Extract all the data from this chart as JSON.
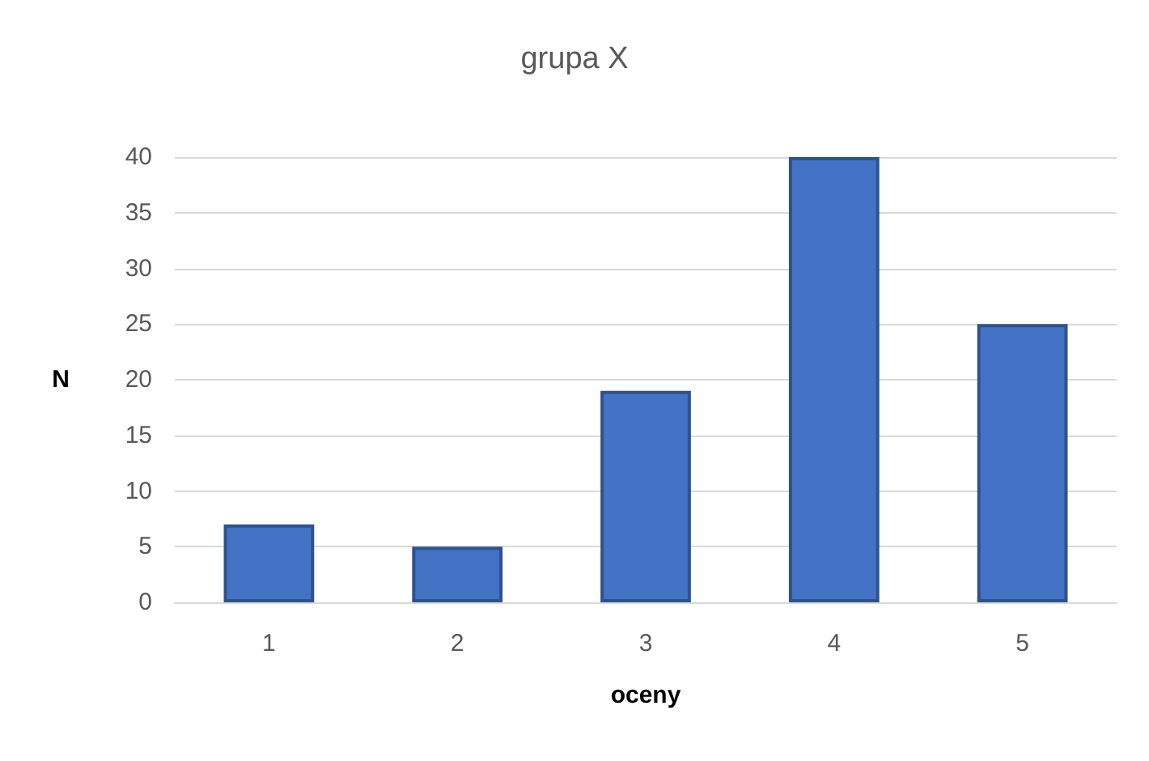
{
  "chart_data": {
    "type": "bar",
    "title": "grupa X",
    "xlabel": "oceny",
    "ylabel": "N",
    "categories": [
      "1",
      "2",
      "3",
      "4",
      "5"
    ],
    "values": [
      7,
      5,
      19,
      40,
      25
    ],
    "color": "#4472c4",
    "ylim": [
      0,
      40
    ],
    "yticks": [
      0,
      5,
      10,
      15,
      20,
      25,
      30,
      35,
      40
    ],
    "grid": "y"
  }
}
